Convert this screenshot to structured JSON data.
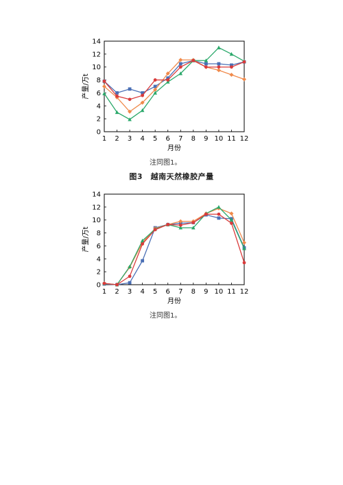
{
  "figure_title": "图3　越南天然橡胶产量",
  "chart_data": [
    {
      "type": "line",
      "title": "",
      "xlabel": "月份",
      "ylabel": "产量/万t",
      "categories": [
        "1",
        "2",
        "3",
        "4",
        "5",
        "6",
        "7",
        "8",
        "9",
        "10",
        "11",
        "12"
      ],
      "yticks": [
        "0",
        "2",
        "4",
        "6",
        "8",
        "10",
        "12",
        "14"
      ],
      "ylim": [
        0,
        14
      ],
      "grid": false,
      "note": "注同图1。",
      "series": [
        {
          "color": "#4a6fb5",
          "marker": "square",
          "values": [
            7.8,
            6.0,
            6.6,
            6.0,
            7.0,
            8.3,
            10.5,
            11.0,
            10.5,
            10.5,
            10.3,
            10.8
          ]
        },
        {
          "color": "#f08a4b",
          "marker": "diamond",
          "values": [
            7.0,
            5.3,
            3.1,
            4.5,
            6.5,
            9.0,
            11.1,
            11.1,
            10.0,
            9.5,
            8.8,
            8.1
          ]
        },
        {
          "color": "#2aa86a",
          "marker": "triangle",
          "values": [
            5.9,
            3.0,
            1.9,
            3.3,
            6.0,
            7.7,
            9.0,
            11.0,
            11.0,
            13.0,
            12.0,
            10.9
          ]
        },
        {
          "color": "#d93b3b",
          "marker": "circle",
          "values": [
            7.8,
            5.5,
            5.0,
            5.6,
            8.0,
            8.0,
            10.0,
            11.0,
            10.0,
            10.0,
            10.0,
            10.8
          ]
        }
      ]
    },
    {
      "type": "line",
      "title": "",
      "xlabel": "月份",
      "ylabel": "产量/万t",
      "categories": [
        "1",
        "2",
        "3",
        "4",
        "5",
        "6",
        "7",
        "8",
        "9",
        "10",
        "11",
        "12"
      ],
      "yticks": [
        "0",
        "2",
        "4",
        "6",
        "8",
        "10",
        "12",
        "14"
      ],
      "ylim": [
        0,
        14
      ],
      "grid": false,
      "note": "注同图1。",
      "series": [
        {
          "color": "#4a6fb5",
          "marker": "square",
          "values": [
            0.1,
            0.0,
            0.3,
            3.7,
            8.8,
            9.3,
            9.5,
            9.6,
            10.8,
            10.3,
            10.2,
            5.7
          ]
        },
        {
          "color": "#f08a4b",
          "marker": "diamond",
          "values": [
            0.2,
            0.0,
            2.7,
            6.5,
            8.7,
            9.3,
            9.8,
            9.8,
            11.0,
            11.8,
            11.0,
            6.5
          ]
        },
        {
          "color": "#2aa86a",
          "marker": "triangle",
          "values": [
            0.2,
            0.0,
            2.8,
            6.8,
            8.6,
            9.3,
            8.8,
            8.8,
            11.0,
            12.0,
            10.0,
            5.6
          ]
        },
        {
          "color": "#d93b3b",
          "marker": "circle",
          "values": [
            0.2,
            0.0,
            1.3,
            6.3,
            8.5,
            9.3,
            9.2,
            9.6,
            10.9,
            10.9,
            9.5,
            3.4
          ]
        }
      ]
    }
  ]
}
